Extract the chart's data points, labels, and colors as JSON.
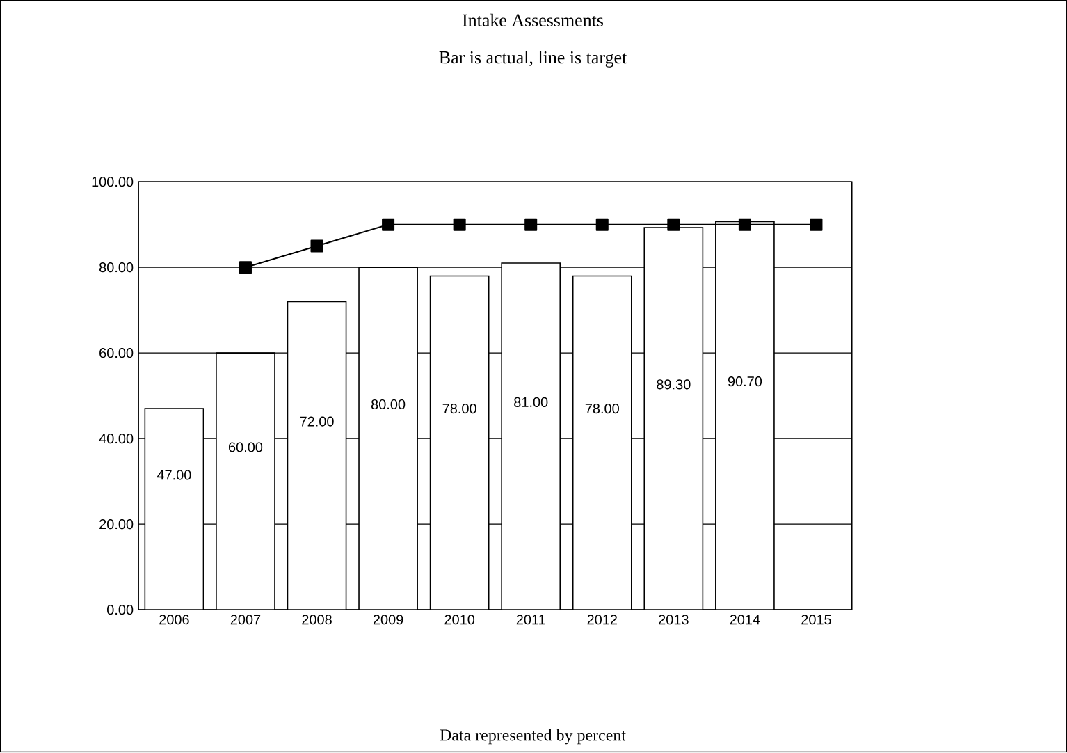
{
  "chart_data": {
    "type": "bar",
    "title": "Intake Assessments",
    "subtitle": "Bar is actual, line is target",
    "annotations": [
      "Data represented by percent"
    ],
    "categories": [
      "2006",
      "2007",
      "2008",
      "2009",
      "2010",
      "2011",
      "2012",
      "2013",
      "2014",
      "2015"
    ],
    "series": [
      {
        "color": "#ffffff",
        "values": [
          47,
          60,
          72,
          80,
          78,
          81,
          78,
          89.3,
          90.7,
          null
        ],
        "value_labels": [
          "47.00",
          "60.00",
          "72.00",
          "80.00",
          "78.00",
          "81.00",
          "78.00",
          "89.30",
          "90.70",
          null
        ]
      },
      {
        "type": "line",
        "color": "#000000",
        "values": [
          null,
          80,
          85,
          90,
          90,
          90,
          90,
          90,
          90,
          90
        ]
      }
    ],
    "marker": "square",
    "ylim": [
      0,
      100
    ],
    "yticks": [
      {
        "value": 0,
        "label": "0.00"
      },
      {
        "value": 20,
        "label": "20.00"
      },
      {
        "value": 40,
        "label": "40.00"
      },
      {
        "value": 60,
        "label": "60.00"
      },
      {
        "value": 80,
        "label": "80.00"
      },
      {
        "value": 100,
        "label": "100.00"
      }
    ],
    "grid": "y"
  }
}
